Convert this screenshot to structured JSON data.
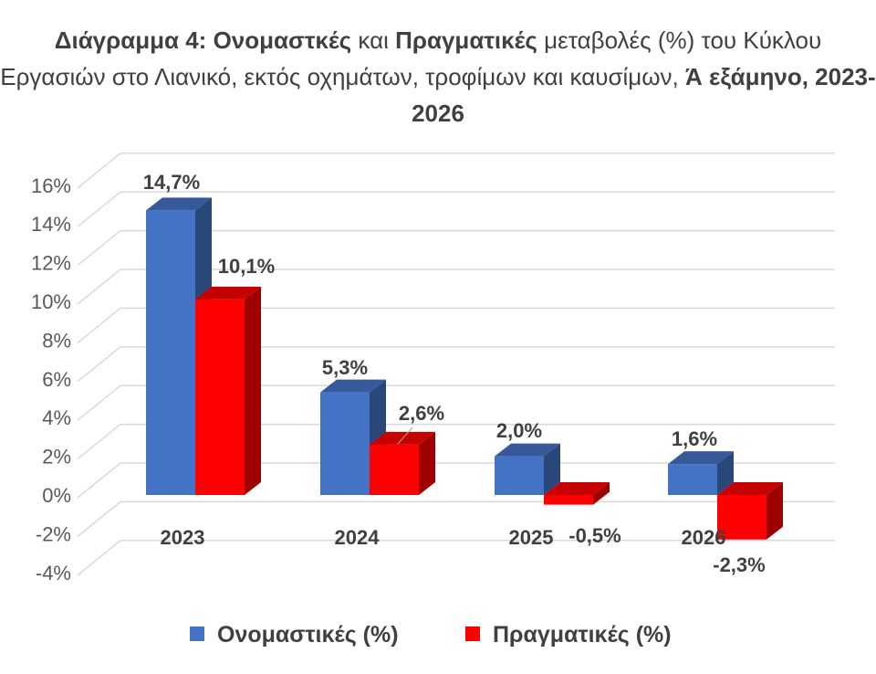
{
  "title": {
    "prefix": "Διάγραμμα 4: ",
    "series1": "Ονομαστκές",
    "and": " και ",
    "series2": "Πραγματικές",
    "rest": " μεταβολές (%) του Κύκλου Εργασιών στο Λιανικό, εκτός οχημάτων, τροφίμων και καυσίμων, ",
    "period": "Ά εξάμηνο, 2023-2026"
  },
  "chart_data": {
    "type": "bar",
    "categories": [
      "2023",
      "2024",
      "2025",
      "2026"
    ],
    "series": [
      {
        "name": "Ονομαστικές (%)",
        "values": [
          14.7,
          5.3,
          2.0,
          1.6
        ],
        "labels": [
          "14,7%",
          "5,3%",
          "2,0%",
          "1,6%"
        ],
        "color": "#4472C4"
      },
      {
        "name": "Πραγματικές (%)",
        "values": [
          10.1,
          2.6,
          -0.5,
          -2.3
        ],
        "labels": [
          "10,1%",
          "2,6%",
          "-0,5%",
          "-2,3%"
        ],
        "color": "#FF0000"
      }
    ],
    "ylim": [
      -4,
      16
    ],
    "yticks": [
      16,
      14,
      12,
      10,
      8,
      6,
      4,
      2,
      0,
      -2,
      -4
    ],
    "ytick_labels": [
      "16%",
      "14%",
      "12%",
      "10%",
      "8%",
      "6%",
      "4%",
      "2%",
      "0%",
      "-2%",
      "-4%"
    ],
    "grid": true,
    "three_d": true,
    "legend_position": "bottom"
  }
}
